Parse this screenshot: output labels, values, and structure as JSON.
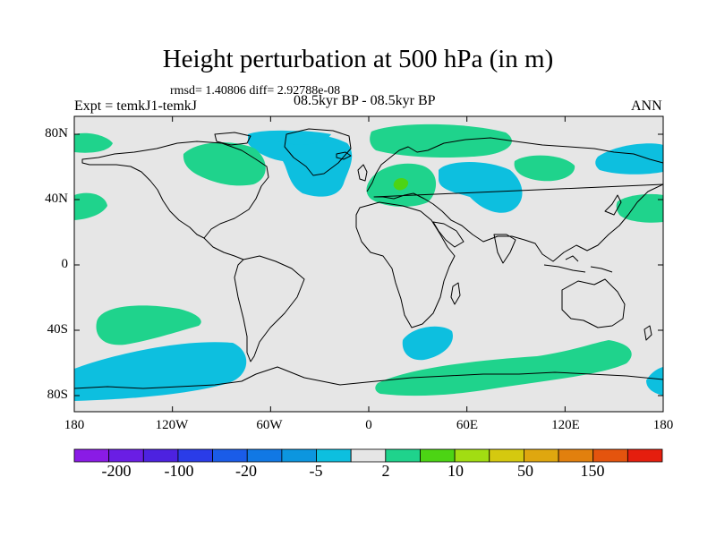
{
  "header": {
    "title": "Height perturbation at 500 hPa (in m)",
    "stats": "rmsd= 1.40806 diff= 2.92788e-08",
    "experiment": "Expt = temkJ1-temkJ",
    "period": "08.5kyr BP - 08.5kyr BP",
    "season": "ANN"
  },
  "map": {
    "lon_ticks": [
      "180",
      "120W",
      "60W",
      "0",
      "60E",
      "120E",
      "180"
    ],
    "lat_ticks": [
      "80N",
      "40N",
      "0",
      "40S",
      "80S"
    ],
    "background_color": "#e6e6e6",
    "anomaly_regions": [
      {
        "name": "north-pacific-west-positive",
        "level": "2",
        "color": "#1fd38c"
      },
      {
        "name": "arctic-alaska-negative",
        "level": "-5",
        "color": "#0dbfdf"
      },
      {
        "name": "north-america-positive",
        "level": "2",
        "color": "#1fd38c"
      },
      {
        "name": "greenland-atlantic-negative",
        "level": "-5",
        "color": "#0dbfdf"
      },
      {
        "name": "scandinavia-positive",
        "level": "2",
        "color": "#1fd38c"
      },
      {
        "name": "europe-positive",
        "level": "2",
        "color": "#1fd38c"
      },
      {
        "name": "central-europe-core",
        "level": "10",
        "color": "#4cd414"
      },
      {
        "name": "russia-negative",
        "level": "-5",
        "color": "#0dbfdf"
      },
      {
        "name": "siberia-positive",
        "level": "2",
        "color": "#1fd38c"
      },
      {
        "name": "north-pacific-east-negative",
        "level": "-5",
        "color": "#0dbfdf"
      },
      {
        "name": "north-pacific-positive",
        "level": "2",
        "color": "#1fd38c"
      },
      {
        "name": "south-pacific-positive",
        "level": "2",
        "color": "#1fd38c"
      },
      {
        "name": "south-pacific-antarctic-negative",
        "level": "-5",
        "color": "#0dbfdf"
      },
      {
        "name": "south-atlantic-negative",
        "level": "-5",
        "color": "#0dbfdf"
      },
      {
        "name": "southern-ocean-positive",
        "level": "2",
        "color": "#1fd38c"
      },
      {
        "name": "southwest-pacific-negative",
        "level": "-5",
        "color": "#0dbfdf"
      }
    ]
  },
  "colorbar": {
    "colors": [
      "#8a1be6",
      "#6a1ee4",
      "#4d22e0",
      "#2a3ce8",
      "#1a5ce8",
      "#1178e4",
      "#0c96df",
      "#0dbfdf",
      "#e6e6e6",
      "#1fd38c",
      "#4cd414",
      "#a2dd12",
      "#d5c90f",
      "#dfa70f",
      "#e2800e",
      "#e4540e",
      "#e51e0e"
    ],
    "labels": [
      "-200",
      "-100",
      "-20",
      "-5",
      "2",
      "10",
      "50",
      "150"
    ]
  }
}
